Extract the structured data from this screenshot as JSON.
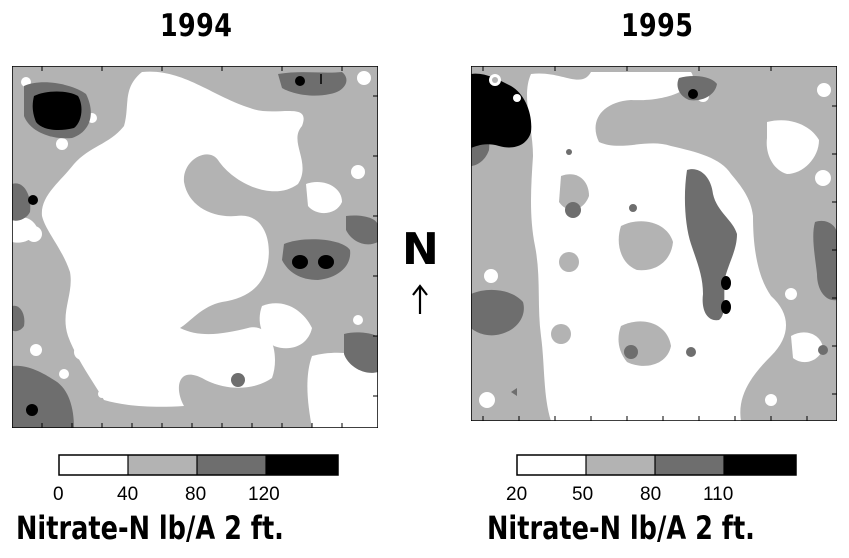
{
  "maps": [
    {
      "title": "1994",
      "legend": {
        "tick_labels": [
          "0",
          "40",
          "80",
          "120"
        ],
        "classes": [
          {
            "range": "0-40",
            "color": "#ffffff"
          },
          {
            "range": "40-80",
            "color": "#b3b3b3"
          },
          {
            "range": "80-120",
            "color": "#6e6e6e"
          },
          {
            "range": ">120",
            "color": "#000000"
          }
        ]
      },
      "caption": "Nitrate-N lb/A 2 ft."
    },
    {
      "title": "1995",
      "legend": {
        "tick_labels": [
          "20",
          "50",
          "80",
          "110"
        ],
        "classes": [
          {
            "range": "20-50",
            "color": "#ffffff"
          },
          {
            "range": "50-80",
            "color": "#b3b3b3"
          },
          {
            "range": "80-110",
            "color": "#6e6e6e"
          },
          {
            "range": ">110",
            "color": "#000000"
          }
        ]
      },
      "caption": "Nitrate-N lb/A 2 ft."
    }
  ],
  "north_indicator": {
    "letter": "N",
    "icon": "north-arrow-icon"
  }
}
